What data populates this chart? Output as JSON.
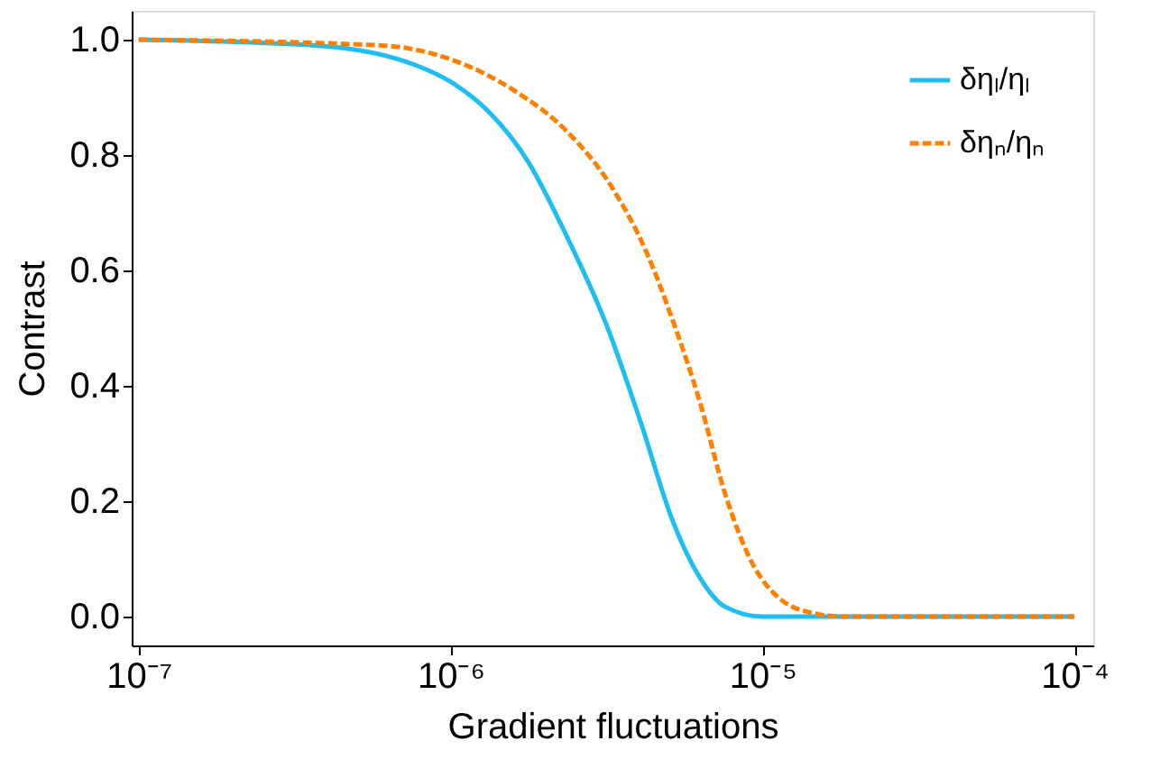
{
  "chart_data": {
    "type": "line",
    "xlabel": "Gradient fluctuations",
    "ylabel": "Contrast",
    "log": "x",
    "xlim": [
      9.5e-08,
      0.000115
    ],
    "ylim": [
      -0.05,
      1.05
    ],
    "xticks": [
      {
        "value": 1e-07,
        "label": "10⁻⁷"
      },
      {
        "value": 1e-06,
        "label": "10⁻⁶"
      },
      {
        "value": 1e-05,
        "label": "10⁻⁵"
      },
      {
        "value": 0.0001,
        "label": "10⁻⁴"
      }
    ],
    "yticks": [
      {
        "value": 0,
        "label": "0.0"
      },
      {
        "value": 0.2,
        "label": "0.2"
      },
      {
        "value": 0.4,
        "label": "0.4"
      },
      {
        "value": 0.6,
        "label": "0.6"
      },
      {
        "value": 0.8,
        "label": "0.8"
      },
      {
        "value": 1,
        "label": "1.0"
      }
    ],
    "grid": false,
    "legend": "top right",
    "marker": "none",
    "series": [
      {
        "name": "δηₗ/ηₗ",
        "color": "#1ebdf2",
        "line_style": "solid",
        "x": [
          1e-07,
          3.7e-07,
          7.8e-07,
          1e-06,
          1.32e-06,
          1.78e-06,
          2.34e-06,
          3.16e-06,
          4.07e-06,
          5.13e-06,
          6.31e-06,
          7.59e-06,
          1e-05,
          0.0001
        ],
        "values": [
          1.0,
          0.99,
          0.955,
          0.927,
          0.876,
          0.787,
          0.663,
          0.506,
          0.337,
          0.169,
          0.067,
          0.017,
          0.0,
          0.0
        ]
      },
      {
        "name": "δηₙ/ηₙ",
        "color": "#ff8000",
        "line_style": "dashed",
        "x": [
          1e-07,
          6e-07,
          1e-06,
          1.62e-06,
          2.34e-06,
          3.31e-06,
          4.27e-06,
          5.13e-06,
          6.31e-06,
          7.59e-06,
          9.33e-06,
          1.12e-05,
          1.45e-05,
          1.82e-05,
          0.0001
        ],
        "values": [
          1.0,
          0.99,
          0.966,
          0.91,
          0.843,
          0.742,
          0.629,
          0.517,
          0.371,
          0.213,
          0.09,
          0.034,
          0.006,
          0.0,
          0.0
        ]
      }
    ]
  }
}
